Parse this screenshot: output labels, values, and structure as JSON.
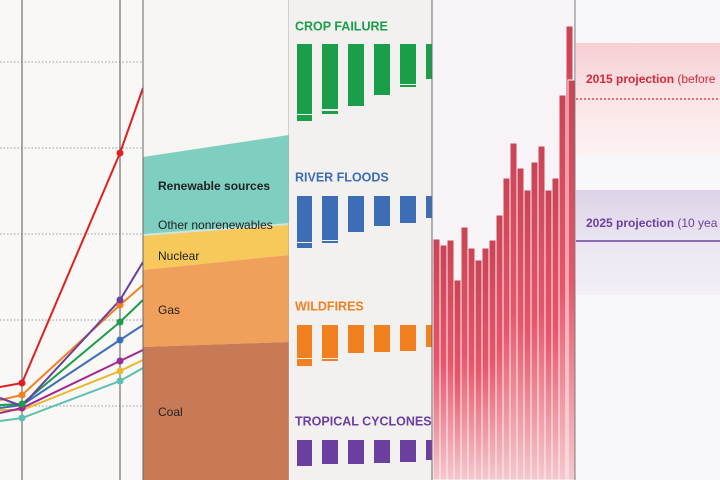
{
  "energy": {
    "labels": [
      "Renewable sources",
      "Other nonrenewables",
      "Nuclear",
      "Gas",
      "Coal"
    ]
  },
  "hazards": [
    "CROP FAILURE",
    "RIVER FLOODS",
    "WILDFIRES",
    "TROPICAL CYCLONES"
  ],
  "projections": [
    {
      "name": "2015 projection",
      "note": "(before"
    },
    {
      "name": "2025 projection",
      "note": "(10 yea"
    }
  ]
}
